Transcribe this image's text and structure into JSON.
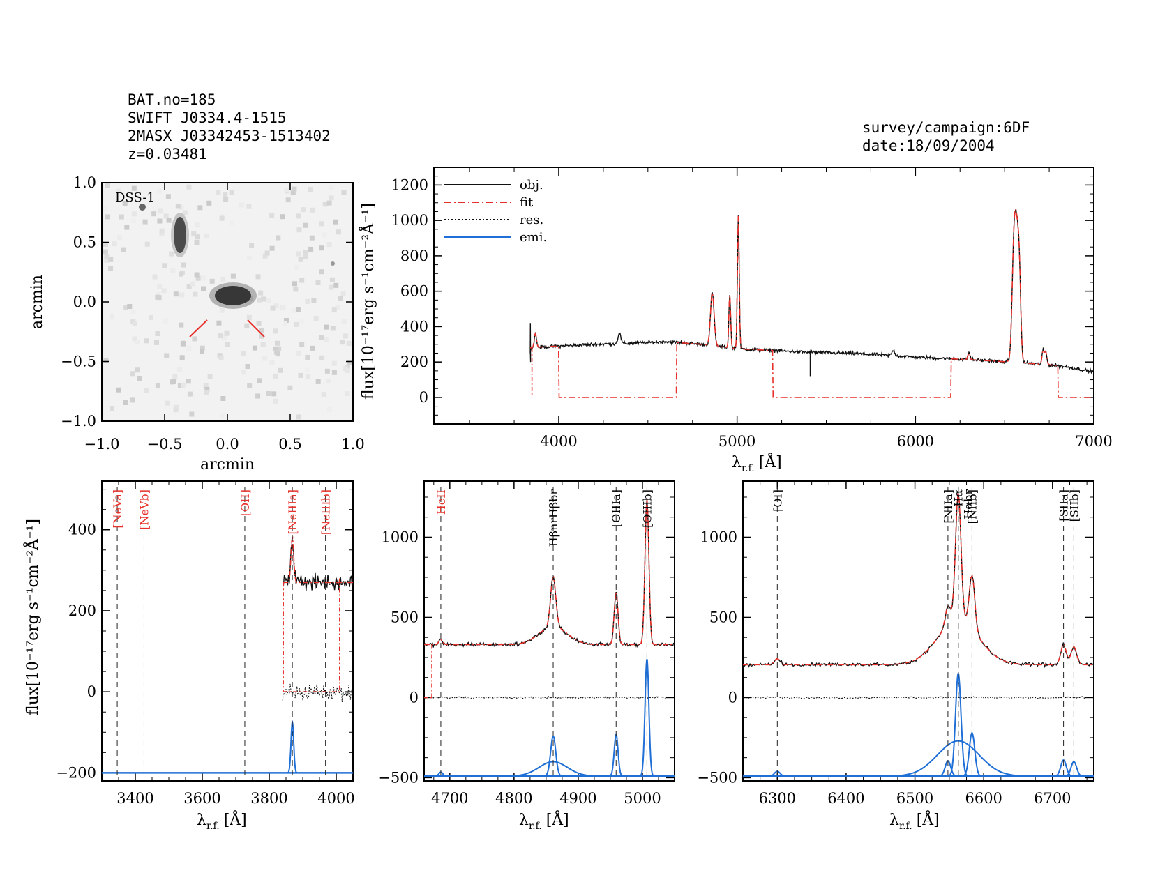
{
  "header": {
    "line1": "BAT.no=185",
    "line2": "SWIFT J0334.4-1515",
    "line3": "2MASX J03342453-1513402",
    "line4": "z=0.03481",
    "survey": "survey/campaign:6DF",
    "date": "date:18/09/2004"
  },
  "image_panel": {
    "label": "DSS-1",
    "xlabel": "arcmin",
    "ylabel": "arcmin",
    "ticks": [
      "-1.0",
      "-0.5",
      "0.0",
      "0.5",
      "1.0"
    ],
    "marker_color": "#e8302a"
  },
  "labels": {
    "flux_ylabel": "flux[10⁻¹⁷erg s⁻¹cm⁻²Å⁻¹]",
    "lambda": "λ",
    "lambda_sub": "r.f.",
    "unit": "[Å]"
  },
  "colors": {
    "obj": "#111111",
    "fit": "#e8302a",
    "res": "#111111",
    "emi": "#1f6fd6",
    "line_red": "#e8302a"
  },
  "legend": [
    "obj.",
    "fit",
    "res.",
    "emi."
  ],
  "chart_data": [
    {
      "type": "line",
      "panel": "full-spectrum",
      "xlim": [
        3300,
        7000
      ],
      "ylim": [
        -150,
        1300
      ],
      "x_ticks": [
        4000,
        5000,
        6000,
        7000
      ],
      "y_ticks": [
        0,
        200,
        400,
        600,
        800,
        1000,
        1200
      ],
      "continuum": [
        [
          3840,
          280
        ],
        [
          3900,
          285
        ],
        [
          4000,
          290
        ],
        [
          4200,
          300
        ],
        [
          4400,
          305
        ],
        [
          4600,
          315
        ],
        [
          4800,
          300
        ],
        [
          5000,
          275
        ],
        [
          5200,
          265
        ],
        [
          5400,
          255
        ],
        [
          5600,
          250
        ],
        [
          5800,
          240
        ],
        [
          6000,
          228
        ],
        [
          6200,
          218
        ],
        [
          6400,
          208
        ],
        [
          6600,
          195
        ],
        [
          6800,
          180
        ],
        [
          7000,
          145
        ]
      ],
      "lines": [
        [
          3869,
          80,
          6
        ],
        [
          4340,
          60,
          8
        ],
        [
          4861,
          300,
          10
        ],
        [
          4959,
          300,
          5
        ],
        [
          5007,
          750,
          5
        ],
        [
          5876,
          30,
          8
        ],
        [
          6300,
          40,
          6
        ],
        [
          6548,
          180,
          8
        ],
        [
          6563,
          820,
          14
        ],
        [
          6583,
          330,
          8
        ],
        [
          6716,
          80,
          6
        ],
        [
          6731,
          70,
          6
        ]
      ],
      "fit_gaps": [
        [
          4000,
          4660
        ],
        [
          5200,
          6200
        ],
        [
          6800,
          7000
        ]
      ],
      "fit_gap_level": 0,
      "legend": [
        "obj.",
        "fit",
        "res.",
        "emi."
      ]
    },
    {
      "type": "line",
      "panel": "zoom-NeV-NeIII",
      "xlim": [
        3300,
        4050
      ],
      "ylim": [
        -220,
        520
      ],
      "x_ticks": [
        3400,
        3600,
        3800,
        4000
      ],
      "y_ticks": [
        -200,
        0,
        200,
        400
      ],
      "line_markers": [
        {
          "x": 3346,
          "label": "[NeVa]",
          "color": "red"
        },
        {
          "x": 3426,
          "label": "[NeVb]",
          "color": "red"
        },
        {
          "x": 3727,
          "label": "[OII]",
          "color": "red"
        },
        {
          "x": 3869,
          "label": "[NeIIIa]",
          "color": "red"
        },
        {
          "x": 3968,
          "label": "[NeIIIb]",
          "color": "red"
        }
      ],
      "obj_range": [
        3840,
        4050
      ],
      "fit_range": [
        3840,
        4010
      ],
      "continuum_level": 270,
      "emi_baseline": -200,
      "emi_lines": [
        [
          3869,
          125,
          4
        ]
      ]
    },
    {
      "type": "line",
      "panel": "zoom-Hbeta-OIII",
      "xlim": [
        4660,
        5050
      ],
      "ylim": [
        -520,
        1350
      ],
      "x_ticks": [
        4700,
        4800,
        4900,
        5000
      ],
      "y_ticks": [
        -500,
        0,
        500,
        1000
      ],
      "line_markers": [
        {
          "x": 4686,
          "label": "HeII",
          "color": "red"
        },
        {
          "x": 4861,
          "label": "HβnrHβbr",
          "color": "black"
        },
        {
          "x": 4959,
          "label": "[OIIIa]",
          "color": "black"
        },
        {
          "x": 5007,
          "label": "[OIIIb]",
          "color": "black"
        }
      ],
      "continuum_level": 330,
      "emi_baseline": -490,
      "emi_lines": [
        [
          4686,
          25,
          3
        ],
        [
          4861,
          250,
          4
        ],
        [
          4861,
          90,
          22
        ],
        [
          4959,
          260,
          3
        ],
        [
          5007,
          730,
          3
        ]
      ]
    },
    {
      "type": "line",
      "panel": "zoom-Halpha-NII-SII",
      "xlim": [
        6250,
        6760
      ],
      "ylim": [
        -520,
        1350
      ],
      "x_ticks": [
        6300,
        6400,
        6500,
        6600,
        6700
      ],
      "y_ticks": [
        -500,
        0,
        500,
        1000
      ],
      "line_markers": [
        {
          "x": 6300,
          "label": "[OI]",
          "color": "black"
        },
        {
          "x": 6548,
          "label": "[NIIa]",
          "color": "black"
        },
        {
          "x": 6563,
          "label": "Hα",
          "color": "black"
        },
        {
          "x": 6563,
          "label": "Hαbr",
          "color": "black"
        },
        {
          "x": 6583,
          "label": "[NIIb]",
          "color": "black"
        },
        {
          "x": 6716,
          "label": "[SIIa]",
          "color": "black"
        },
        {
          "x": 6731,
          "label": "[SIIb]",
          "color": "black"
        }
      ],
      "continuum_level": 205,
      "emi_baseline": -490,
      "emi_lines": [
        [
          6300,
          30,
          4
        ],
        [
          6548,
          95,
          4
        ],
        [
          6563,
          640,
          4
        ],
        [
          6563,
          220,
          30
        ],
        [
          6583,
          270,
          4
        ],
        [
          6716,
          100,
          4
        ],
        [
          6731,
          90,
          4
        ]
      ]
    }
  ]
}
